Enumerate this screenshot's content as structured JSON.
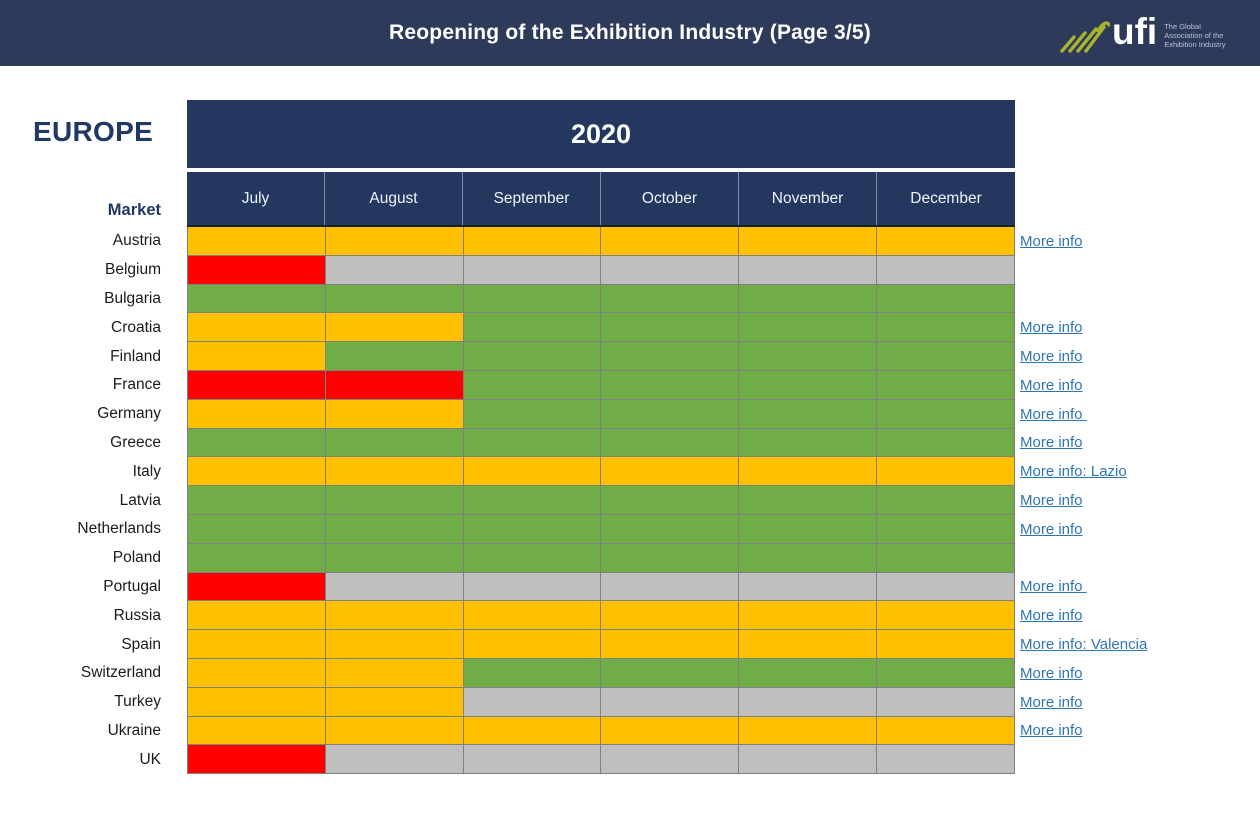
{
  "banner": {
    "title": "Reopening of the Exhibition Industry (Page 3/5)",
    "logo_text": "ufi",
    "tagline": [
      "The Global",
      "Association of the",
      "Exhibition Industry"
    ]
  },
  "region_label": "EUROPE",
  "table": {
    "year_header": "2020",
    "market_header": "Market",
    "months": [
      "July",
      "August",
      "September",
      "October",
      "November",
      "December"
    ]
  },
  "colors": {
    "navy_banner": "#2d3a59",
    "navy_header": "#24385f",
    "navy_text": "#1f3864",
    "link_blue": "#2e75b6",
    "logo_strokes": "#a9b42e",
    "yellow": "#FFC000",
    "red": "#FF0000",
    "green": "#70AD47",
    "gray": "#BFBFBF"
  },
  "chart_data": {
    "type": "heatmap",
    "title": "Reopening of the Exhibition Industry (Page 3/5)",
    "region": "EUROPE",
    "year": "2020",
    "x": [
      "July",
      "August",
      "September",
      "October",
      "November",
      "December"
    ],
    "color_key": {
      "yellow": "#FFC000",
      "red": "#FF0000",
      "green": "#70AD47",
      "gray": "#BFBFBF"
    },
    "rows": [
      {
        "market": "Austria",
        "values": [
          "yellow",
          "yellow",
          "yellow",
          "yellow",
          "yellow",
          "yellow"
        ],
        "more_info": "More info"
      },
      {
        "market": "Belgium",
        "values": [
          "red",
          "gray",
          "gray",
          "gray",
          "gray",
          "gray"
        ],
        "more_info": null
      },
      {
        "market": "Bulgaria",
        "values": [
          "green",
          "green",
          "green",
          "green",
          "green",
          "green"
        ],
        "more_info": null
      },
      {
        "market": "Croatia",
        "values": [
          "yellow",
          "yellow",
          "green",
          "green",
          "green",
          "green"
        ],
        "more_info": "More info"
      },
      {
        "market": "Finland",
        "values": [
          "yellow",
          "green",
          "green",
          "green",
          "green",
          "green"
        ],
        "more_info": "More info"
      },
      {
        "market": "France",
        "values": [
          "red",
          "red",
          "green",
          "green",
          "green",
          "green"
        ],
        "more_info": "More info"
      },
      {
        "market": "Germany",
        "values": [
          "yellow",
          "yellow",
          "green",
          "green",
          "green",
          "green"
        ],
        "more_info": "More info "
      },
      {
        "market": "Greece",
        "values": [
          "green",
          "green",
          "green",
          "green",
          "green",
          "green"
        ],
        "more_info": "More info"
      },
      {
        "market": "Italy",
        "values": [
          "yellow",
          "yellow",
          "yellow",
          "yellow",
          "yellow",
          "yellow"
        ],
        "more_info": "More info: Lazio"
      },
      {
        "market": "Latvia",
        "values": [
          "green",
          "green",
          "green",
          "green",
          "green",
          "green"
        ],
        "more_info": "More info"
      },
      {
        "market": "Netherlands",
        "values": [
          "green",
          "green",
          "green",
          "green",
          "green",
          "green"
        ],
        "more_info": "More info"
      },
      {
        "market": "Poland",
        "values": [
          "green",
          "green",
          "green",
          "green",
          "green",
          "green"
        ],
        "more_info": null
      },
      {
        "market": "Portugal",
        "values": [
          "red",
          "gray",
          "gray",
          "gray",
          "gray",
          "gray"
        ],
        "more_info": "More info "
      },
      {
        "market": "Russia",
        "values": [
          "yellow",
          "yellow",
          "yellow",
          "yellow",
          "yellow",
          "yellow"
        ],
        "more_info": "More info"
      },
      {
        "market": "Spain",
        "values": [
          "yellow",
          "yellow",
          "yellow",
          "yellow",
          "yellow",
          "yellow"
        ],
        "more_info": "More info: Valencia"
      },
      {
        "market": "Switzerland",
        "values": [
          "yellow",
          "yellow",
          "green",
          "green",
          "green",
          "green"
        ],
        "more_info": "More info"
      },
      {
        "market": "Turkey",
        "values": [
          "yellow",
          "yellow",
          "gray",
          "gray",
          "gray",
          "gray"
        ],
        "more_info": "More info"
      },
      {
        "market": "Ukraine",
        "values": [
          "yellow",
          "yellow",
          "yellow",
          "yellow",
          "yellow",
          "yellow"
        ],
        "more_info": "More info"
      },
      {
        "market": "UK",
        "values": [
          "red",
          "gray",
          "gray",
          "gray",
          "gray",
          "gray"
        ],
        "more_info": null
      }
    ]
  }
}
